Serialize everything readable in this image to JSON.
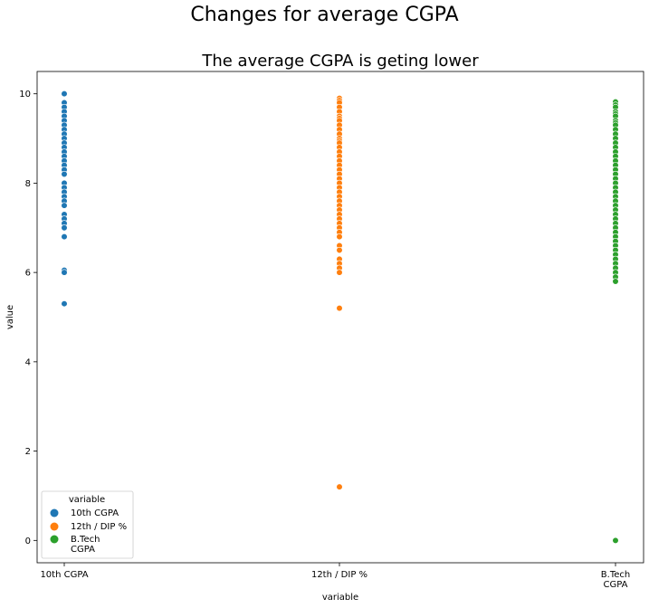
{
  "figure": {
    "suptitle": "Changes for average CGPA"
  },
  "chart_data": {
    "type": "scatter",
    "title": "The average CGPA is geting lower",
    "xlabel": "variable",
    "ylabel": "value",
    "categories": [
      "10th CGPA",
      "12th  / DIP %",
      "B.Tech\nCGPA"
    ],
    "ylim": [
      -0.5,
      10.5
    ],
    "yticks": [
      0,
      2,
      4,
      6,
      8,
      10
    ],
    "grid": false,
    "legend": {
      "title": "variable",
      "placement": "lower-left",
      "entries": [
        "10th CGPA",
        "12th  / DIP %",
        "B.Tech\nCGPA"
      ]
    },
    "colors": [
      "#1f77b4",
      "#ff7f0e",
      "#2ca02c"
    ],
    "series": [
      {
        "name": "10th CGPA",
        "x": "10th CGPA",
        "values": [
          10.0,
          9.8,
          9.7,
          9.6,
          9.5,
          9.4,
          9.3,
          9.2,
          9.1,
          9.0,
          8.9,
          8.8,
          8.7,
          8.6,
          8.5,
          8.4,
          8.3,
          8.2,
          8.0,
          7.9,
          7.8,
          7.7,
          7.6,
          7.5,
          7.3,
          7.2,
          7.1,
          7.0,
          6.8,
          6.05,
          6.0,
          5.3
        ]
      },
      {
        "name": "12th  / DIP %",
        "x": "12th  / DIP %",
        "values": [
          9.9,
          9.85,
          9.8,
          9.7,
          9.6,
          9.5,
          9.45,
          9.4,
          9.3,
          9.2,
          9.1,
          9.0,
          8.95,
          8.9,
          8.8,
          8.7,
          8.6,
          8.5,
          8.4,
          8.3,
          8.2,
          8.1,
          8.0,
          7.9,
          7.8,
          7.7,
          7.6,
          7.5,
          7.4,
          7.3,
          7.2,
          7.1,
          7.0,
          6.9,
          6.8,
          6.6,
          6.5,
          6.3,
          6.2,
          6.1,
          6.0,
          5.2,
          1.2
        ]
      },
      {
        "name": "B.Tech\nCGPA",
        "x": "B.Tech\nCGPA",
        "values": [
          9.82,
          9.75,
          9.7,
          9.6,
          9.55,
          9.5,
          9.4,
          9.35,
          9.3,
          9.2,
          9.1,
          9.0,
          8.9,
          8.8,
          8.7,
          8.6,
          8.5,
          8.4,
          8.3,
          8.2,
          8.1,
          8.0,
          7.9,
          7.8,
          7.7,
          7.6,
          7.5,
          7.4,
          7.3,
          7.2,
          7.1,
          7.0,
          6.9,
          6.8,
          6.7,
          6.6,
          6.5,
          6.4,
          6.3,
          6.2,
          6.1,
          6.0,
          5.9,
          5.8,
          0.0
        ]
      }
    ]
  }
}
